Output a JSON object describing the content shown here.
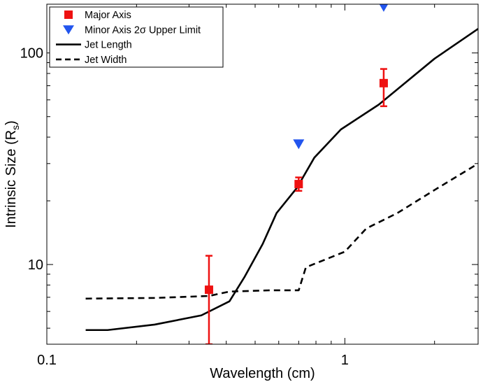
{
  "chart_data": {
    "type": "line",
    "xscale": "log",
    "yscale": "log",
    "xlim": [
      0.1,
      2.8
    ],
    "ylim": [
      4.2,
      170
    ],
    "xlabel": "Wavelength (cm)",
    "ylabel_main": "Intrinsic Size (R",
    "ylabel_sub": "s",
    "ylabel_close": ")",
    "xticks": [
      {
        "value": 0.1,
        "label": "0.1"
      },
      {
        "value": 1,
        "label": "1"
      }
    ],
    "yticks": [
      {
        "value": 10,
        "label": "10"
      },
      {
        "value": 100,
        "label": "100"
      }
    ],
    "legend": {
      "position": "top-left",
      "entries": [
        {
          "key": "major",
          "label": "Major Axis",
          "marker": "square",
          "color": "#ee1111"
        },
        {
          "key": "minor",
          "label": "Minor Axis 2σ Upper Limit",
          "marker": "triangle-down",
          "color": "#2255ee"
        },
        {
          "key": "length",
          "label": "Jet Length",
          "marker": "line-solid",
          "color": "#000000"
        },
        {
          "key": "width",
          "label": "Jet Width",
          "marker": "line-dashed",
          "color": "#000000"
        }
      ]
    },
    "series": [
      {
        "key": "length",
        "name": "Jet Length",
        "style": "solid",
        "color": "#000000",
        "points": [
          [
            0.135,
            4.9
          ],
          [
            0.16,
            4.9
          ],
          [
            0.23,
            5.2
          ],
          [
            0.33,
            5.75
          ],
          [
            0.41,
            6.7
          ],
          [
            0.46,
            8.7
          ],
          [
            0.53,
            12.5
          ],
          [
            0.59,
            17.5
          ],
          [
            0.69,
            23.0
          ],
          [
            0.79,
            32.0
          ],
          [
            0.97,
            43.5
          ],
          [
            1.3,
            57.0
          ],
          [
            2.0,
            94.0
          ],
          [
            2.8,
            130.0
          ]
        ]
      },
      {
        "key": "width",
        "name": "Jet Width",
        "style": "dashed",
        "color": "#000000",
        "points": [
          [
            0.135,
            6.9
          ],
          [
            0.23,
            6.95
          ],
          [
            0.35,
            7.1
          ],
          [
            0.41,
            7.45
          ],
          [
            0.56,
            7.55
          ],
          [
            0.7,
            7.55
          ],
          [
            0.74,
            9.7
          ],
          [
            1.0,
            11.5
          ],
          [
            1.18,
            14.8
          ],
          [
            1.5,
            17.5
          ],
          [
            2.0,
            22.5
          ],
          [
            2.8,
            30.0
          ]
        ]
      }
    ],
    "major_axis": [
      {
        "x": 0.35,
        "y": 7.6,
        "ylo": 4.2,
        "yhi": 11.0
      },
      {
        "x": 0.7,
        "y": 24.0,
        "ylo": 22.3,
        "yhi": 25.8
      },
      {
        "x": 1.35,
        "y": 72.0,
        "ylo": 56.0,
        "yhi": 84.0
      }
    ],
    "minor_axis_upper_limit": [
      {
        "x": 0.7,
        "y": 37.0
      },
      {
        "x": 1.35,
        "y": 165.0
      }
    ],
    "colors": {
      "major": "#ee1111",
      "minor": "#2255ee",
      "line": "#000000"
    }
  }
}
